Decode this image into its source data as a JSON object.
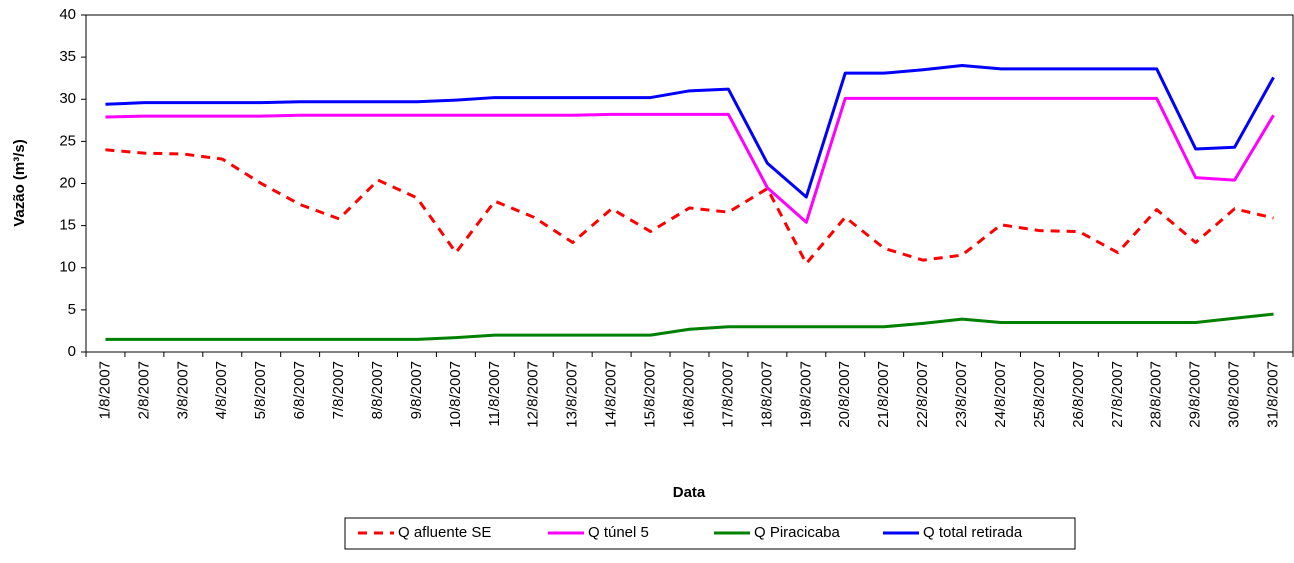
{
  "chart_data": {
    "type": "line",
    "x_label": "Data",
    "y_label": "Vazão (m³/s)",
    "categories": [
      "1/8/2007",
      "2/8/2007",
      "3/8/2007",
      "4/8/2007",
      "5/8/2007",
      "6/8/2007",
      "7/8/2007",
      "8/8/2007",
      "9/8/2007",
      "10/8/2007",
      "11/8/2007",
      "12/8/2007",
      "13/8/2007",
      "14/8/2007",
      "15/8/2007",
      "16/8/2007",
      "17/8/2007",
      "18/8/2007",
      "19/8/2007",
      "20/8/2007",
      "21/8/2007",
      "22/8/2007",
      "23/8/2007",
      "24/8/2007",
      "25/8/2007",
      "26/8/2007",
      "27/8/2007",
      "28/8/2007",
      "29/8/2007",
      "30/8/2007",
      "31/8/2007"
    ],
    "series": [
      {
        "name": "Q afluente SE",
        "color": "#ff0000",
        "dashed": true,
        "values": [
          24.0,
          23.6,
          23.5,
          22.9,
          20.0,
          17.5,
          15.8,
          20.4,
          18.3,
          11.8,
          17.9,
          16.0,
          13.0,
          17.0,
          14.3,
          17.1,
          16.6,
          19.4,
          10.5,
          16.0,
          12.3,
          10.9,
          11.5,
          15.1,
          14.4,
          14.3,
          11.8,
          16.9,
          13.0,
          17.0,
          15.9
        ]
      },
      {
        "name": "Q túnel 5",
        "color": "#ff00ff",
        "dashed": false,
        "values": [
          27.9,
          28.0,
          28.0,
          28.0,
          28.0,
          28.1,
          28.1,
          28.1,
          28.1,
          28.1,
          28.1,
          28.1,
          28.1,
          28.2,
          28.2,
          28.2,
          28.2,
          19.5,
          15.4,
          30.1,
          30.1,
          30.1,
          30.1,
          30.1,
          30.1,
          30.1,
          30.1,
          30.1,
          20.7,
          20.4,
          28.1
        ]
      },
      {
        "name": "Q Piracicaba",
        "color": "#008000",
        "dashed": false,
        "values": [
          1.5,
          1.5,
          1.5,
          1.5,
          1.5,
          1.5,
          1.5,
          1.5,
          1.5,
          1.7,
          2.0,
          2.0,
          2.0,
          2.0,
          2.0,
          2.7,
          3.0,
          3.0,
          3.0,
          3.0,
          3.0,
          3.4,
          3.9,
          3.5,
          3.5,
          3.5,
          3.5,
          3.5,
          3.5,
          4.0,
          4.5
        ]
      },
      {
        "name": "Q total retirada",
        "color": "#0000ff",
        "dashed": false,
        "values": [
          29.4,
          29.6,
          29.6,
          29.6,
          29.6,
          29.7,
          29.7,
          29.7,
          29.7,
          29.9,
          30.2,
          30.2,
          30.2,
          30.2,
          30.2,
          31.0,
          31.2,
          22.4,
          18.4,
          33.1,
          33.1,
          33.5,
          34.0,
          33.6,
          33.6,
          33.6,
          33.6,
          33.6,
          24.1,
          24.3,
          32.6
        ]
      }
    ],
    "ylim": [
      0,
      40
    ],
    "yticks": [
      0,
      5,
      10,
      15,
      20,
      25,
      30,
      35,
      40
    ],
    "grid": false,
    "legend": "bottom"
  }
}
